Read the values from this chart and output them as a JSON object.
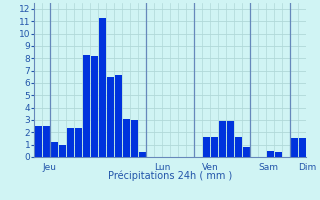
{
  "title": "Précipitations 24h ( mm )",
  "bar_color": "#0033dd",
  "bg_color": "#d0f4f4",
  "grid_color": "#b0d8d8",
  "axis_color": "#6688bb",
  "text_color": "#2255aa",
  "ylim": [
    0,
    12.5
  ],
  "yticks": [
    0,
    1,
    2,
    3,
    4,
    5,
    6,
    7,
    8,
    9,
    10,
    11,
    12
  ],
  "bar_values": [
    2.5,
    2.5,
    1.2,
    1.0,
    2.3,
    2.3,
    8.3,
    8.2,
    11.3,
    6.5,
    6.6,
    3.1,
    3.0,
    0.4,
    0.0,
    0.0,
    0.0,
    0.0,
    0.0,
    0.0,
    0.0,
    1.6,
    1.6,
    2.9,
    2.9,
    1.6,
    0.8,
    0.0,
    0.0,
    0.5,
    0.4,
    0.0,
    1.5,
    1.5
  ],
  "n_bars": 34,
  "day_sep_indices": [
    2,
    14,
    20,
    27,
    32
  ],
  "day_labels": [
    "Jeu",
    "Lun",
    "Ven",
    "Sam",
    "Dim"
  ],
  "day_label_bar_pos": [
    0.5,
    14.5,
    20.5,
    27.5,
    32.5
  ]
}
